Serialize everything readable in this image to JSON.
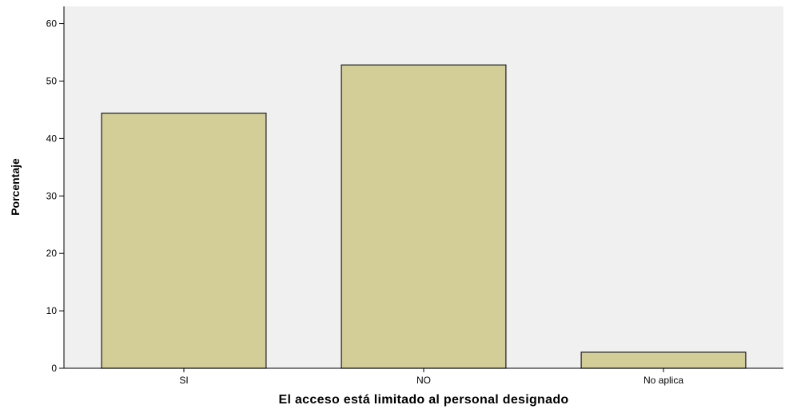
{
  "chart_data": {
    "type": "bar",
    "title": "",
    "xlabel": "El acceso está limitado al personal designado",
    "ylabel": "Porcentaje",
    "categories": [
      "SI",
      "NO",
      "No aplica"
    ],
    "values": [
      44.4,
      52.8,
      2.8
    ],
    "ylim": [
      0,
      63
    ],
    "yticks": [
      0,
      10,
      20,
      30,
      40,
      50,
      60
    ],
    "grid": false,
    "legend": "none",
    "colors": {
      "plot_background": "#f0f0f0",
      "bar_fill": "#d3ce97",
      "bar_stroke": "#1a1a1a",
      "axis": "#000000"
    }
  }
}
